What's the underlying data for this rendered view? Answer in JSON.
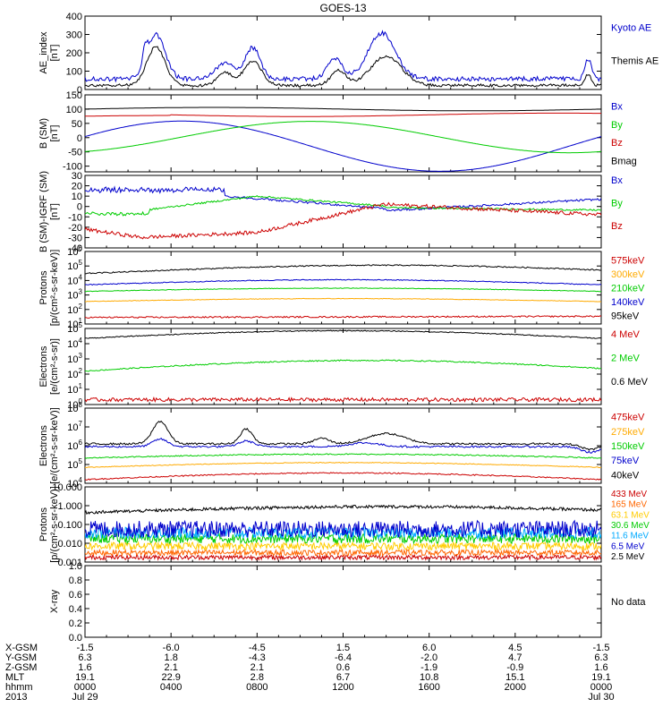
{
  "chart_data": {
    "type": "line",
    "title": "GOES-13",
    "panels": [
      {
        "id": "ae",
        "ylabel": "AE_index\n[nT]",
        "ytick_labels": [
          "400",
          "300",
          "200",
          "100",
          "0"
        ],
        "ylim": [
          0,
          400
        ],
        "log": false,
        "series": [
          {
            "name": "Kyoto AE",
            "color": "#0000cc",
            "kind": "ae_kyoto"
          },
          {
            "name": "Themis AE",
            "color": "#000000",
            "kind": "ae_themis"
          }
        ]
      },
      {
        "id": "bsm",
        "ylabel": "B (SM)\n[nT]",
        "ytick_labels": [
          "150",
          "100",
          "50",
          "0",
          "-50",
          "-100"
        ],
        "ylim": [
          -120,
          150
        ],
        "log": false,
        "series": [
          {
            "name": "Bx",
            "color": "#0000cc",
            "kind": "bx"
          },
          {
            "name": "By",
            "color": "#00cc00",
            "kind": "by"
          },
          {
            "name": "Bz",
            "color": "#cc0000",
            "kind": "bz"
          },
          {
            "name": "Bmag",
            "color": "#000000",
            "kind": "bmag"
          }
        ]
      },
      {
        "id": "igrf",
        "ylabel": "B (SM)-IGRF (SM)\n[nT]",
        "ytick_labels": [
          "30",
          "20",
          "10",
          "0",
          "-10",
          "-20",
          "-30",
          "-40"
        ],
        "ylim": [
          -40,
          30
        ],
        "log": false,
        "series": [
          {
            "name": "Bx",
            "color": "#0000cc",
            "kind": "dbx"
          },
          {
            "name": "By",
            "color": "#00cc00",
            "kind": "dby"
          },
          {
            "name": "Bz",
            "color": "#cc0000",
            "kind": "dbz"
          }
        ]
      },
      {
        "id": "protons_kev",
        "ylabel": "Protons\n[p/(cm²-s-sr-keV)]",
        "ytick_labels": [
          "10^6",
          "10^5",
          "10^4",
          "10^3",
          "10^2",
          "10^1"
        ],
        "ylim_log10": [
          1,
          6
        ],
        "log": true,
        "series": [
          {
            "name": "575keV",
            "color": "#cc0000",
            "kind": "p575"
          },
          {
            "name": "300keV",
            "color": "#ffaa00",
            "kind": "p300"
          },
          {
            "name": "210keV",
            "color": "#00cc00",
            "kind": "p210"
          },
          {
            "name": "140keV",
            "color": "#0000cc",
            "kind": "p140"
          },
          {
            "name": "95keV",
            "color": "#000000",
            "kind": "p95"
          }
        ]
      },
      {
        "id": "electrons_mev",
        "ylabel": "Electrons\n[e/(cm²-s-sr)]",
        "ytick_labels": [
          "10^5",
          "10^4",
          "10^3",
          "10^2",
          "10^1",
          "10^0"
        ],
        "ylim_log10": [
          0,
          5
        ],
        "log": true,
        "series": [
          {
            "name": "4 MeV",
            "color": "#cc0000",
            "kind": "e4"
          },
          {
            "name": "2 MeV",
            "color": "#00cc00",
            "kind": "e2"
          },
          {
            "name": "0.6 MeV",
            "color": "#000000",
            "kind": "e06"
          }
        ]
      },
      {
        "id": "electrons_kev",
        "ylabel": "Electrons\n[e/(cm²-s-sr-keV)]",
        "ytick_labels": [
          "10^8",
          "10^7",
          "10^6",
          "10^5",
          "10^4"
        ],
        "ylim_log10": [
          4,
          8
        ],
        "log": true,
        "series": [
          {
            "name": "475keV",
            "color": "#cc0000",
            "kind": "ek475"
          },
          {
            "name": "275keV",
            "color": "#ffaa00",
            "kind": "ek275"
          },
          {
            "name": "150keV",
            "color": "#00cc00",
            "kind": "ek150"
          },
          {
            "name": "75keV",
            "color": "#0000cc",
            "kind": "ek75"
          },
          {
            "name": "40keV",
            "color": "#000000",
            "kind": "ek40"
          }
        ]
      },
      {
        "id": "protons_mev",
        "ylabel": "Protons\n[p/(cm²-s-sr-keV)]",
        "ytick_labels": [
          "10.000",
          "1.000",
          "0.100",
          "0.010",
          "0.001"
        ],
        "ylim_log10": [
          -3,
          1
        ],
        "log": true,
        "series": [
          {
            "name": "433 MeV",
            "color": "#cc0000",
            "kind": "pm433"
          },
          {
            "name": "165 MeV",
            "color": "#ff6600",
            "kind": "pm165"
          },
          {
            "name": "63.1 MeV",
            "color": "#ffcc00",
            "kind": "pm63"
          },
          {
            "name": "30.6 MeV",
            "color": "#00cc00",
            "kind": "pm30"
          },
          {
            "name": "11.6 MeV",
            "color": "#00aaff",
            "kind": "pm11"
          },
          {
            "name": "6.5 MeV",
            "color": "#0000cc",
            "kind": "pm6"
          },
          {
            "name": "2.5 MeV",
            "color": "#000000",
            "kind": "pm2"
          }
        ]
      },
      {
        "id": "xray",
        "ylabel": "X-ray",
        "ytick_labels": [
          "1.0",
          "0.8",
          "0.6",
          "0.4",
          "0.2",
          "0.0"
        ],
        "ylim": [
          0,
          1
        ],
        "log": false,
        "note": "No data",
        "series": []
      }
    ],
    "x_axis": {
      "range_hours": [
        0,
        24
      ],
      "tick_hours": [
        0,
        4,
        8,
        12,
        16,
        20,
        24
      ],
      "rows": [
        {
          "label": "X-GSM",
          "values": [
            "-1.5",
            "-6.0",
            "-4.5",
            "1.5",
            "6.0",
            "4.5",
            "-1.5"
          ]
        },
        {
          "label": "Y-GSM",
          "values": [
            "6.3",
            "1.8",
            "-4.3",
            "-6.4",
            "-2.0",
            "4.7",
            "6.3"
          ]
        },
        {
          "label": "Z-GSM",
          "values": [
            "1.6",
            "2.1",
            "2.1",
            "0.6",
            "-1.9",
            "-0.9",
            "1.6"
          ]
        },
        {
          "label": "MLT",
          "values": [
            "19.1",
            "22.9",
            "2.8",
            "6.7",
            "10.8",
            "15.1",
            "19.1"
          ]
        },
        {
          "label": "hhmm",
          "values": [
            "0000",
            "0400",
            "0800",
            "1200",
            "1600",
            "2000",
            "0000"
          ]
        },
        {
          "label": "2013",
          "values": [
            "Jul 29",
            "",
            "",
            "",
            "",
            "",
            "Jul 30"
          ]
        }
      ]
    }
  }
}
